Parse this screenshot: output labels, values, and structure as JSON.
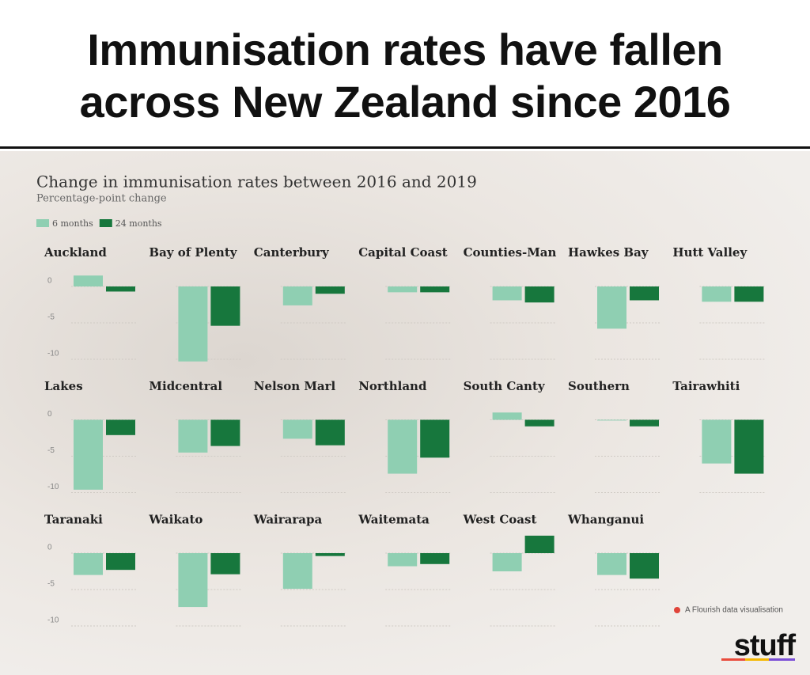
{
  "header": {
    "title": "Immunisation rates have fallen across New Zealand since 2016"
  },
  "chart_data": {
    "type": "bar",
    "title": "Change in immunisation rates between 2016 and 2019",
    "subtitle": "Percentage-point change",
    "categories": [
      "Auckland",
      "Bay of Plenty",
      "Canterbury",
      "Capital Coast",
      "Counties-Man",
      "Hawkes Bay",
      "Hutt Valley",
      "Lakes",
      "Midcentral",
      "Nelson Marl",
      "Northland",
      "South Canty",
      "Southern",
      "Tairawhiti",
      "Taranaki",
      "Waikato",
      "Wairarapa",
      "Waitemata",
      "West Coast",
      "Whanganui"
    ],
    "series": [
      {
        "name": "6 months",
        "color": "#8fcfb2",
        "values": [
          1.5,
          -10.3,
          -2.6,
          -0.8,
          -1.9,
          -5.8,
          -2.1,
          -9.6,
          -4.5,
          -2.6,
          -7.4,
          1.0,
          -0.1,
          -6.0,
          -3.0,
          -7.4,
          -4.9,
          -1.8,
          -2.5,
          -3.0
        ]
      },
      {
        "name": "24 months",
        "color": "#17773d",
        "values": [
          -0.7,
          -5.4,
          -1.0,
          -0.8,
          -2.2,
          -1.9,
          -2.1,
          -2.1,
          -3.6,
          -3.5,
          -5.2,
          -0.9,
          -0.9,
          -7.4,
          -2.3,
          -2.9,
          -0.4,
          -1.5,
          2.4,
          -3.5
        ]
      }
    ],
    "ylim": [
      -10,
      0
    ],
    "yticks": [
      0,
      -5,
      -10
    ],
    "grid": true,
    "credit": "A Flourish data visualisation"
  },
  "logo": "stuff"
}
